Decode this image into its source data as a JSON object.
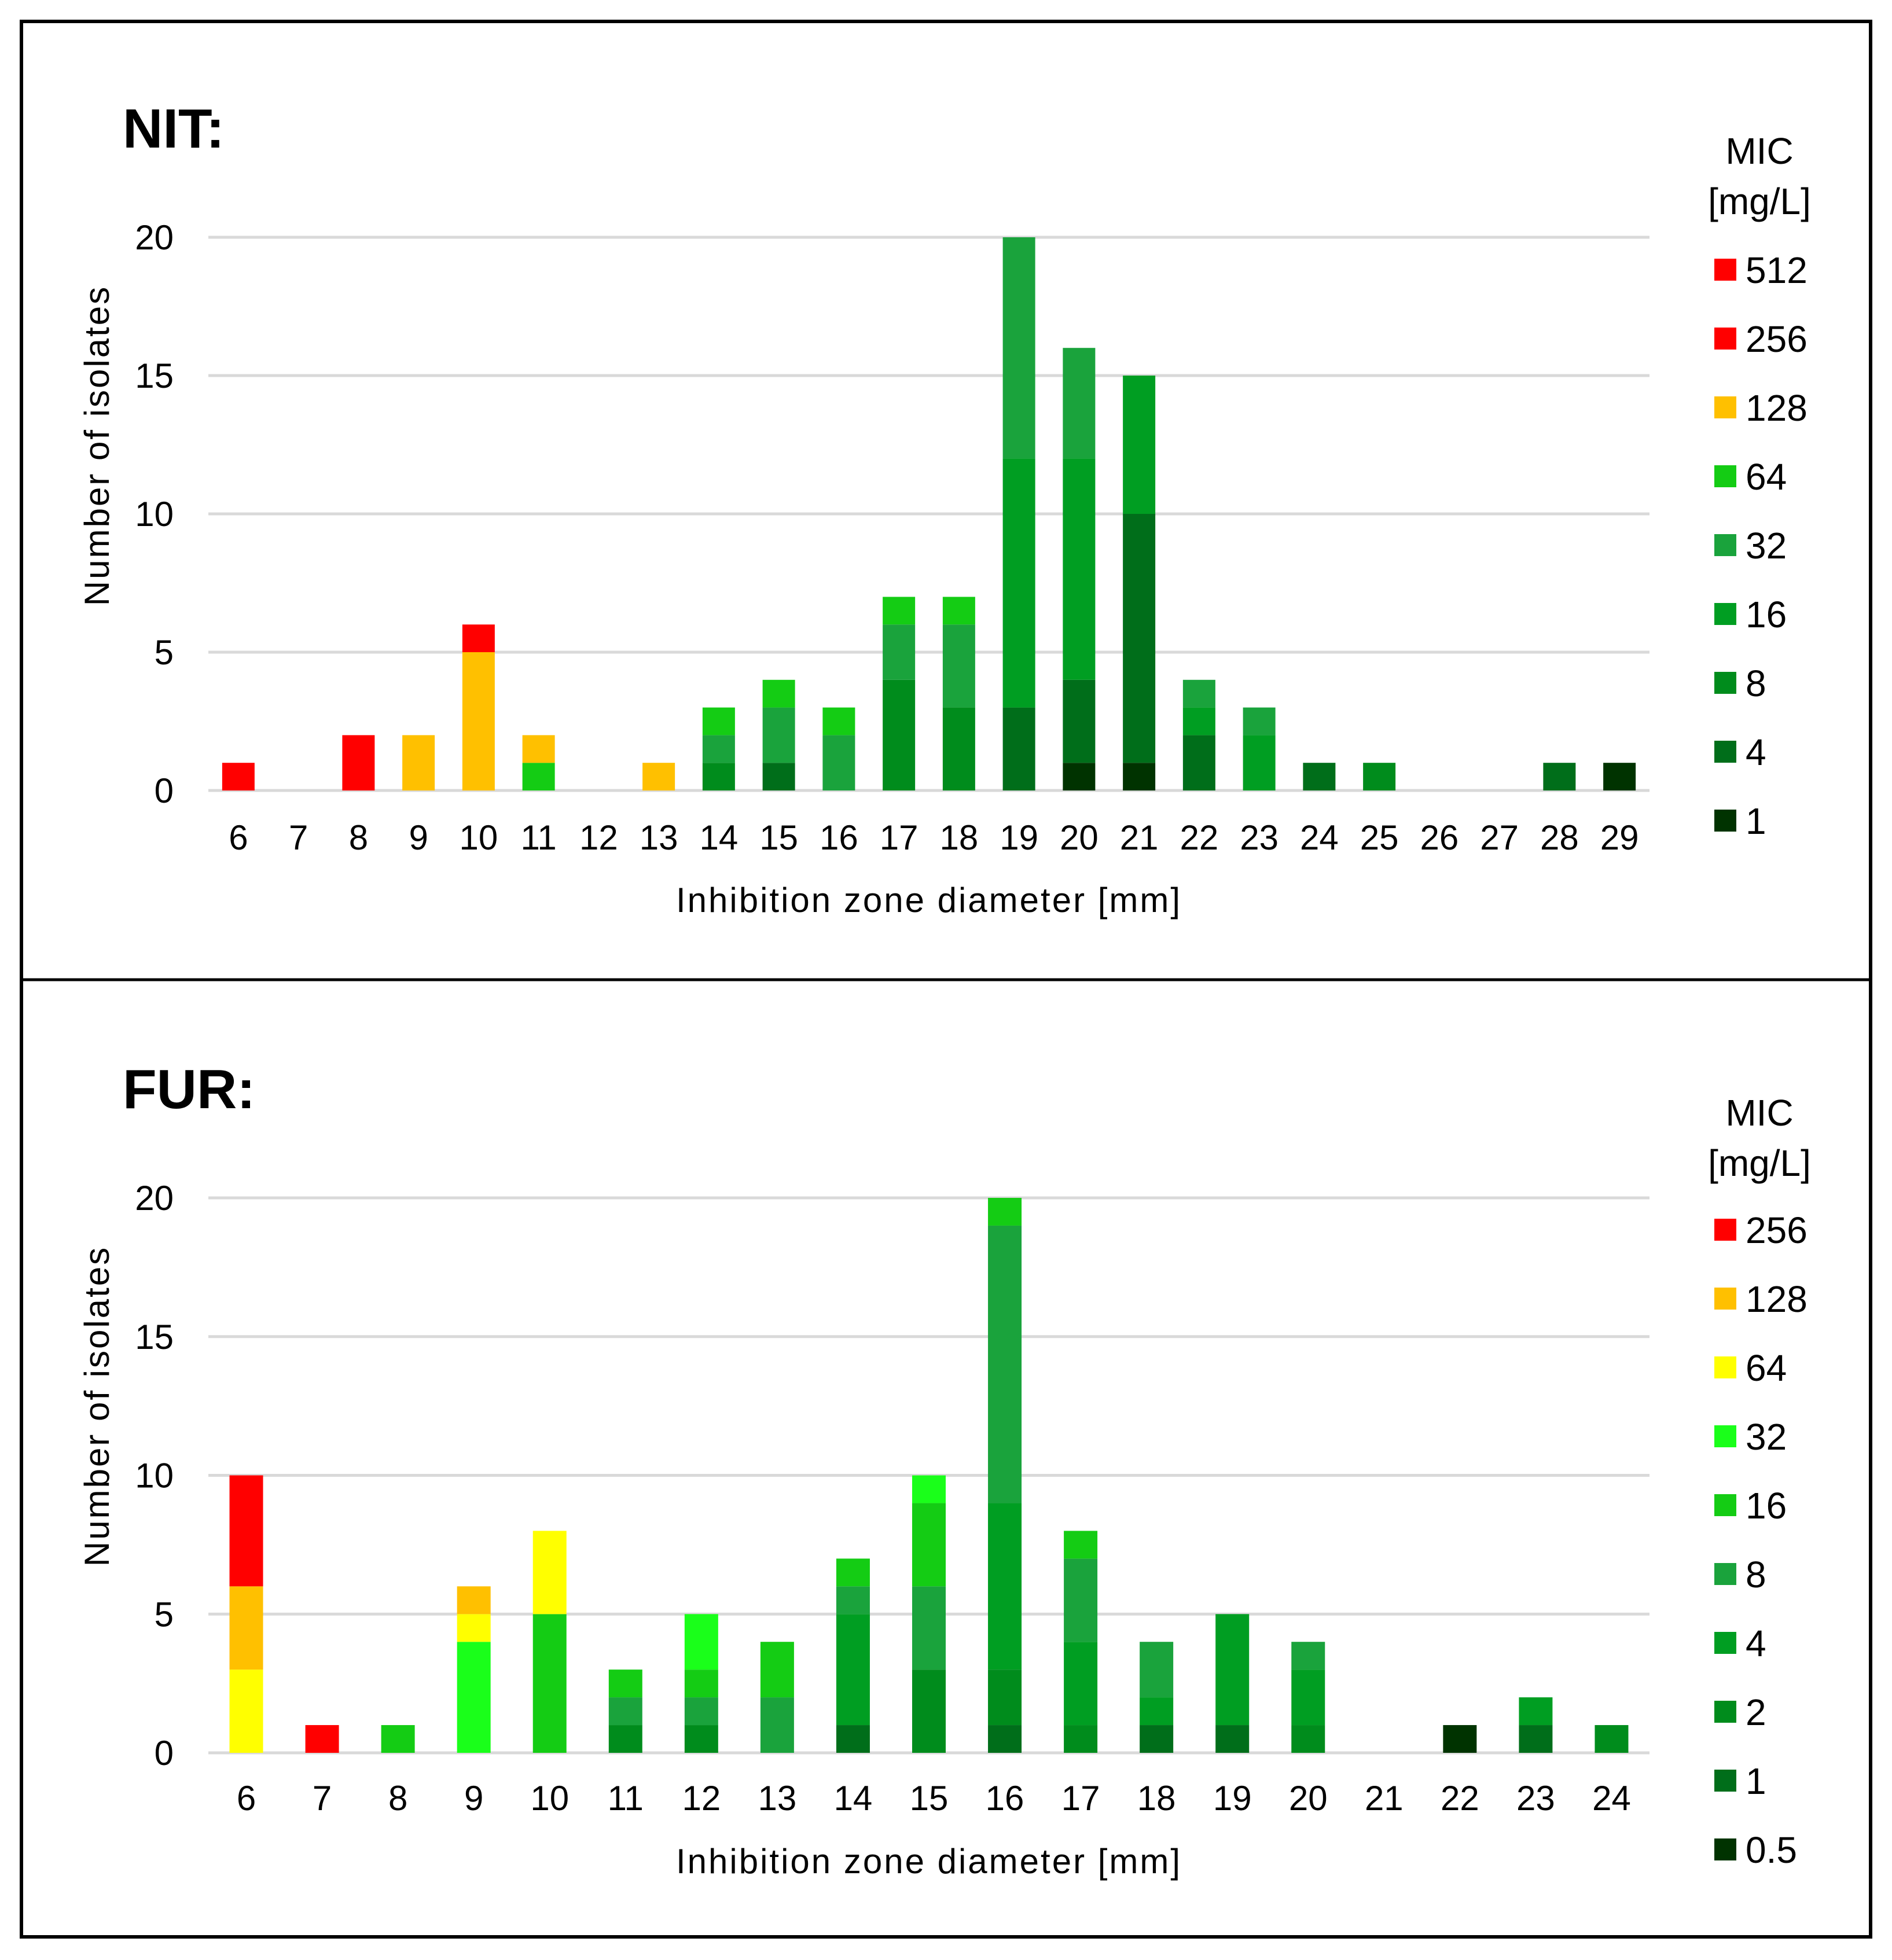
{
  "legend_title_line1": "MIC",
  "legend_title_line2": "[mg/L]",
  "chart_data": [
    {
      "type": "bar",
      "stacked": true,
      "title": "NIT:",
      "xlabel": "Inhibition zone diameter [mm]",
      "ylabel": "Number of isolates",
      "ylim": [
        0,
        20
      ],
      "yticks": [
        0,
        5,
        10,
        15,
        20
      ],
      "categories": [
        "6",
        "7",
        "8",
        "9",
        "10",
        "11",
        "12",
        "13",
        "14",
        "15",
        "16",
        "17",
        "18",
        "19",
        "20",
        "21",
        "22",
        "23",
        "24",
        "25",
        "26",
        "27",
        "28",
        "29"
      ],
      "series": [
        {
          "name": "1",
          "color": "#003300",
          "values": [
            0,
            0,
            0,
            0,
            0,
            0,
            0,
            0,
            0,
            0,
            0,
            0,
            0,
            0,
            1,
            1,
            0,
            0,
            0,
            0,
            0,
            0,
            0,
            1
          ]
        },
        {
          "name": "4",
          "color": "#006e1a",
          "values": [
            0,
            0,
            0,
            0,
            0,
            0,
            0,
            0,
            0,
            1,
            0,
            0,
            0,
            3,
            3,
            9,
            2,
            0,
            1,
            0,
            0,
            0,
            1,
            0
          ]
        },
        {
          "name": "8",
          "color": "#008c1c",
          "values": [
            0,
            0,
            0,
            0,
            0,
            0,
            0,
            0,
            1,
            0,
            0,
            4,
            3,
            0,
            0,
            0,
            0,
            0,
            0,
            1,
            0,
            0,
            0,
            0
          ]
        },
        {
          "name": "16",
          "color": "#009e22",
          "values": [
            0,
            0,
            0,
            0,
            0,
            0,
            0,
            0,
            0,
            0,
            0,
            0,
            0,
            9,
            8,
            5,
            1,
            2,
            0,
            0,
            0,
            0,
            0,
            0
          ]
        },
        {
          "name": "32",
          "color": "#1aa33c",
          "values": [
            0,
            0,
            0,
            0,
            0,
            0,
            0,
            0,
            1,
            2,
            2,
            2,
            3,
            8,
            4,
            0,
            1,
            1,
            0,
            0,
            0,
            0,
            0,
            0
          ]
        },
        {
          "name": "64",
          "color": "#14cc14",
          "values": [
            0,
            0,
            0,
            0,
            0,
            1,
            0,
            0,
            1,
            1,
            1,
            1,
            1,
            0,
            0,
            0,
            0,
            0,
            0,
            0,
            0,
            0,
            0,
            0
          ]
        },
        {
          "name": "128",
          "color": "#ffc000",
          "values": [
            0,
            0,
            0,
            2,
            5,
            1,
            0,
            1,
            0,
            0,
            0,
            0,
            0,
            0,
            0,
            0,
            0,
            0,
            0,
            0,
            0,
            0,
            0,
            0
          ]
        },
        {
          "name": "256",
          "color": "#ff0000",
          "values": [
            1,
            0,
            2,
            0,
            1,
            0,
            0,
            0,
            0,
            0,
            0,
            0,
            0,
            0,
            0,
            0,
            0,
            0,
            0,
            0,
            0,
            0,
            0,
            0
          ]
        },
        {
          "name": "512",
          "color": "#ff0000",
          "values": [
            0,
            0,
            0,
            0,
            0,
            0,
            0,
            0,
            0,
            0,
            0,
            0,
            0,
            0,
            0,
            0,
            0,
            0,
            0,
            0,
            0,
            0,
            0,
            0
          ]
        }
      ]
    },
    {
      "type": "bar",
      "stacked": true,
      "title": "FUR:",
      "xlabel": "Inhibition zone diameter [mm]",
      "ylabel": "Number of isolates",
      "ylim": [
        0,
        20
      ],
      "yticks": [
        0,
        5,
        10,
        15,
        20
      ],
      "categories": [
        "6",
        "7",
        "8",
        "9",
        "10",
        "11",
        "12",
        "13",
        "14",
        "15",
        "16",
        "17",
        "18",
        "19",
        "20",
        "21",
        "22",
        "23",
        "24"
      ],
      "series": [
        {
          "name": "0.5",
          "color": "#003300",
          "values": [
            0,
            0,
            0,
            0,
            0,
            0,
            0,
            0,
            0,
            0,
            0,
            0,
            0,
            0,
            0,
            0,
            1,
            0,
            0
          ]
        },
        {
          "name": "1",
          "color": "#006e1a",
          "values": [
            0,
            0,
            0,
            0,
            0,
            0,
            0,
            0,
            1,
            0,
            1,
            0,
            1,
            1,
            0,
            0,
            0,
            1,
            0
          ]
        },
        {
          "name": "2",
          "color": "#008c1c",
          "values": [
            0,
            0,
            0,
            0,
            0,
            1,
            1,
            0,
            0,
            3,
            2,
            1,
            0,
            0,
            1,
            0,
            0,
            0,
            1
          ]
        },
        {
          "name": "4",
          "color": "#009e22",
          "values": [
            0,
            0,
            0,
            0,
            0,
            0,
            0,
            0,
            4,
            0,
            6,
            3,
            1,
            4,
            2,
            0,
            0,
            1,
            0
          ]
        },
        {
          "name": "8",
          "color": "#1aa33c",
          "values": [
            0,
            0,
            0,
            0,
            0,
            1,
            1,
            2,
            1,
            3,
            10,
            3,
            2,
            0,
            1,
            0,
            0,
            0,
            0
          ]
        },
        {
          "name": "16",
          "color": "#14cc14",
          "values": [
            0,
            0,
            1,
            0,
            5,
            1,
            1,
            2,
            1,
            3,
            1,
            1,
            0,
            0,
            0,
            0,
            0,
            0,
            0
          ]
        },
        {
          "name": "32",
          "color": "#1aff1a",
          "values": [
            0,
            0,
            0,
            4,
            0,
            0,
            2,
            0,
            0,
            1,
            0,
            0,
            0,
            0,
            0,
            0,
            0,
            0,
            0
          ]
        },
        {
          "name": "64",
          "color": "#ffff00",
          "values": [
            3,
            0,
            0,
            1,
            3,
            0,
            0,
            0,
            0,
            0,
            0,
            0,
            0,
            0,
            0,
            0,
            0,
            0,
            0
          ]
        },
        {
          "name": "128",
          "color": "#ffc000",
          "values": [
            3,
            0,
            0,
            1,
            0,
            0,
            0,
            0,
            0,
            0,
            0,
            0,
            0,
            0,
            0,
            0,
            0,
            0,
            0
          ]
        },
        {
          "name": "256",
          "color": "#ff0000",
          "values": [
            4,
            1,
            0,
            0,
            0,
            0,
            0,
            0,
            0,
            0,
            0,
            0,
            0,
            0,
            0,
            0,
            0,
            0,
            0
          ]
        }
      ]
    }
  ]
}
